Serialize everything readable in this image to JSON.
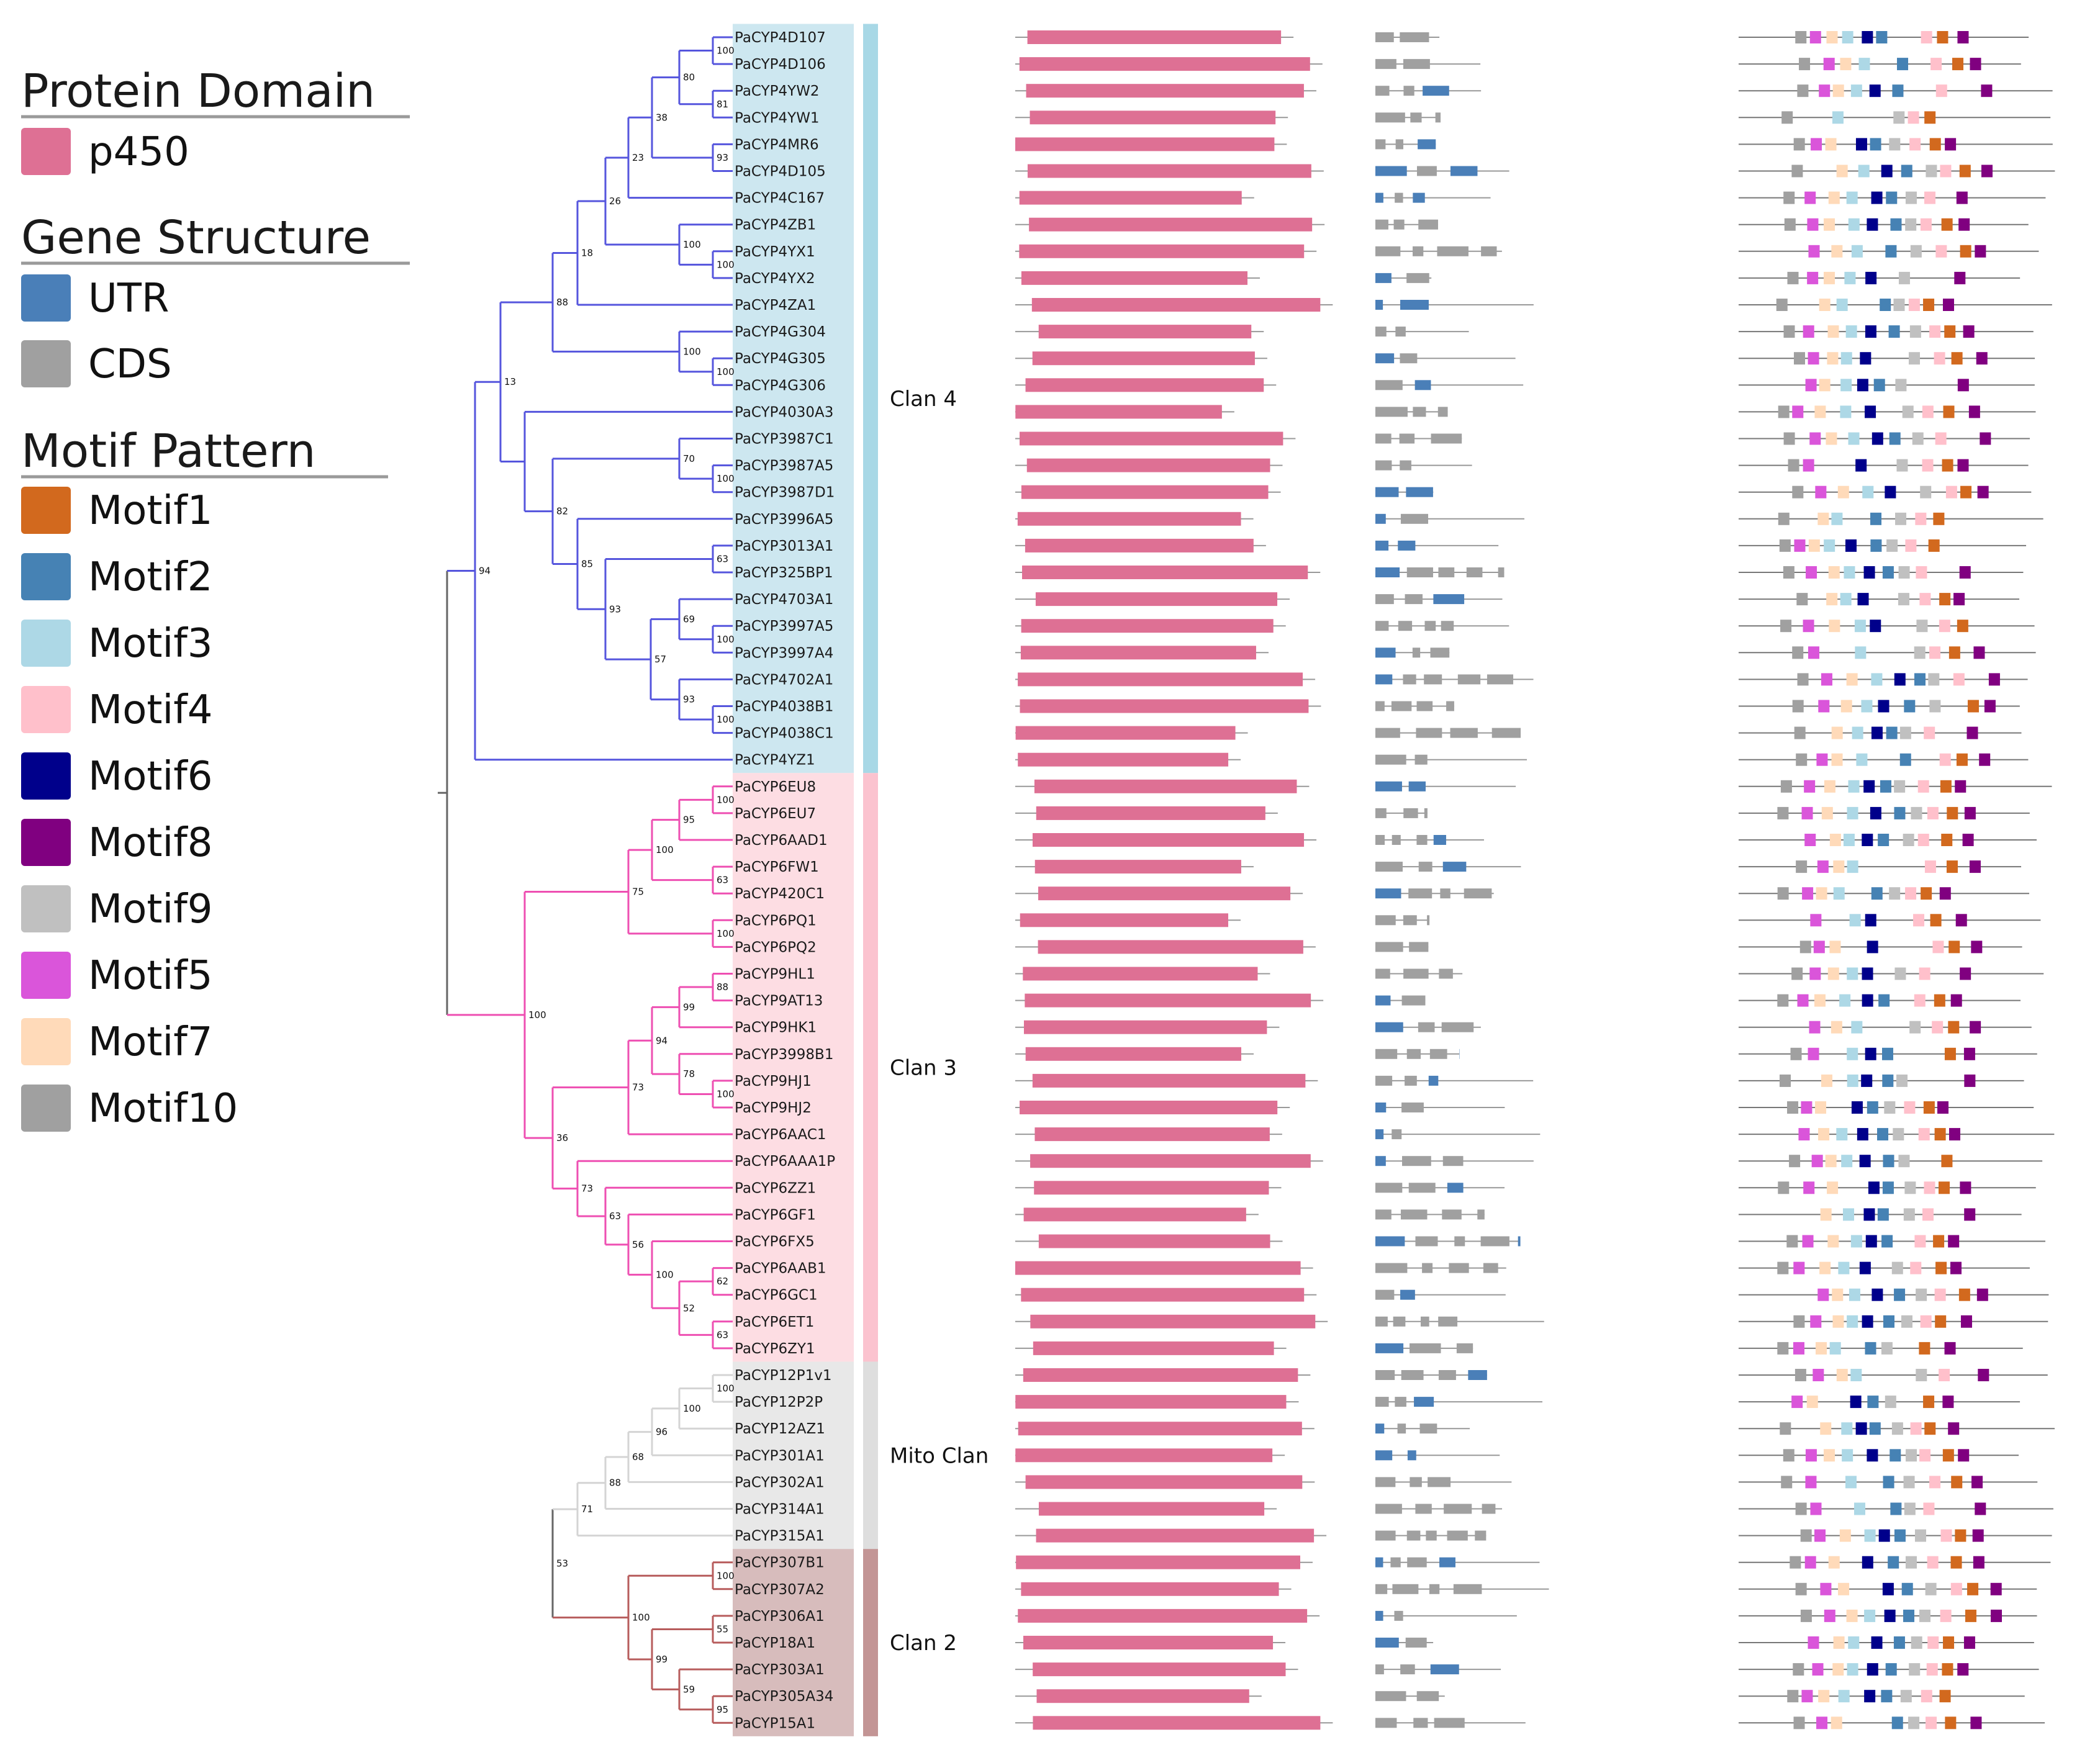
{
  "legend": {
    "protein_domain": {
      "title": "Protein Domain",
      "items": [
        {
          "label": "p450",
          "color": "#de7094"
        }
      ]
    },
    "gene_structure": {
      "title": "Gene Structure",
      "items": [
        {
          "label": "UTR",
          "color": "#4a7fb8"
        },
        {
          "label": "CDS",
          "color": "#a0a0a0"
        }
      ]
    },
    "motif_pattern": {
      "title": "Motif Pattern",
      "items": [
        {
          "label": "Motif1",
          "color": "#d2691e"
        },
        {
          "label": "Motif2",
          "color": "#4682b4"
        },
        {
          "label": "Motif3",
          "color": "#add8e6"
        },
        {
          "label": "Motif4",
          "color": "#ffc0cb"
        },
        {
          "label": "Motif6",
          "color": "#00008b"
        },
        {
          "label": "Motif8",
          "color": "#800080"
        },
        {
          "label": "Motif9",
          "color": "#c0c0c0"
        },
        {
          "label": "Motif5",
          "color": "#da55da"
        },
        {
          "label": "Motif7",
          "color": "#ffdab9"
        },
        {
          "label": "Motif10",
          "color": "#a0a0a0"
        }
      ]
    }
  },
  "clans": [
    {
      "label": "Clan 4",
      "bg": "#cde7f0",
      "bar": "#a8d8e6",
      "branch": "#5555dd"
    },
    {
      "label": "Clan 3",
      "bg": "#fddde3",
      "bar": "#fbc3cf",
      "branch": "#ee4fb2"
    },
    {
      "label": "Mito Clan",
      "bg": "#e8e8e8",
      "bar": "#dedede",
      "branch": "#d4d4d4"
    },
    {
      "label": "Clan 2",
      "bg": "#d7bcbc",
      "bar": "#c39595",
      "branch": "#b75c5c"
    }
  ],
  "root_branch_color": "#666666",
  "genes": [
    "PaCYP4D107",
    "PaCYP4D106",
    "PaCYP4YW2",
    "PaCYP4YW1",
    "PaCYP4MR6",
    "PaCYP4D105",
    "PaCYP4C167",
    "PaCYP4ZB1",
    "PaCYP4YX1",
    "PaCYP4YX2",
    "PaCYP4ZA1",
    "PaCYP4G304",
    "PaCYP4G305",
    "PaCYP4G306",
    "PaCYP4030A3",
    "PaCYP3987C1",
    "PaCYP3987A5",
    "PaCYP3987D1",
    "PaCYP3996A5",
    "PaCYP3013A1",
    "PaCYP325BP1",
    "PaCYP4703A1",
    "PaCYP3997A5",
    "PaCYP3997A4",
    "PaCYP4702A1",
    "PaCYP4038B1",
    "PaCYP4038C1",
    "PaCYP4YZ1",
    "PaCYP6EU8",
    "PaCYP6EU7",
    "PaCYP6AAD1",
    "PaCYP6FW1",
    "PaCYP420C1",
    "PaCYP6PQ1",
    "PaCYP6PQ2",
    "PaCYP9HL1",
    "PaCYP9AT13",
    "PaCYP9HK1",
    "PaCYP3998B1",
    "PaCYP9HJ1",
    "PaCYP9HJ2",
    "PaCYP6AAC1",
    "PaCYP6AAA1P",
    "PaCYP6ZZ1",
    "PaCYP6GF1",
    "PaCYP6FX5",
    "PaCYP6AAB1",
    "PaCYP6GC1",
    "PaCYP6ET1",
    "PaCYP6ZY1",
    "PaCYP12P1v1",
    "PaCYP12P2P",
    "PaCYP12AZ1",
    "PaCYP301A1",
    "PaCYP302A1",
    "PaCYP314A1",
    "PaCYP315A1",
    "PaCYP307B1",
    "PaCYP307A2",
    "PaCYP306A1",
    "PaCYP18A1",
    "PaCYP303A1",
    "PaCYP305A34",
    "PaCYP15A1"
  ],
  "clan_ranges": [
    [
      0,
      27
    ],
    [
      28,
      49
    ],
    [
      50,
      56
    ],
    [
      57,
      63
    ]
  ],
  "tree": {
    "n": [
      [
        "",
        0,
        1,
        4
      ],
      [
        "100",
        1148,
        "PaCYP4D107",
        "PaCYP4D106"
      ],
      [
        "81",
        1148,
        "PaCYP4YW2",
        "PaCYP4YW1"
      ],
      [
        "80",
        1094,
        1,
        2
      ],
      [
        "93",
        1148,
        "PaCYP4MR6",
        "PaCYP4D105"
      ],
      [
        "38",
        1050,
        3,
        4
      ],
      [
        "23",
        1012,
        5,
        "PaCYP4C167"
      ],
      [
        "100",
        1148,
        "PaCYP4YX1",
        "PaCYP4YX2"
      ],
      [
        "100",
        1094,
        "PaCYP4ZB1",
        7
      ],
      [
        "26",
        975,
        6,
        8
      ],
      [
        "100",
        1148,
        "PaCYP4G305",
        "PaCYP4G306"
      ],
      [
        "100",
        1094,
        "PaCYP4G304",
        10
      ],
      [
        "18",
        930,
        9,
        "PaCYP4ZA1"
      ],
      [
        "88",
        890,
        12,
        11
      ],
      [
        "100",
        1148,
        "PaCYP3987A5",
        "PaCYP3987D1"
      ],
      [
        "70",
        1094,
        "PaCYP3987C1",
        14
      ],
      [
        "63",
        1148,
        "PaCYP3013A1",
        "PaCYP325BP1"
      ],
      [
        "100",
        1148,
        "PaCYP3997A5",
        "PaCYP3997A4"
      ],
      [
        "69",
        1094,
        "PaCYP4703A1",
        17
      ],
      [
        "100",
        1148,
        "PaCYP4038B1",
        "PaCYP4038C1"
      ],
      [
        "93",
        1094,
        "PaCYP4702A1",
        19
      ],
      [
        "57",
        1048,
        18,
        20
      ],
      [
        "93",
        975,
        16,
        21
      ],
      [
        "85",
        930,
        "PaCYP3996A5",
        22
      ],
      [
        "82",
        890,
        15,
        23
      ],
      [
        "",
        845,
        "PaCYP4030A3",
        24
      ],
      [
        "13",
        806,
        13,
        25
      ],
      [
        "94",
        765,
        26,
        "PaCYP4YZ1"
      ],
      [
        "100",
        1148,
        "PaCYP6EU8",
        "PaCYP6EU7"
      ],
      [
        "95",
        1094,
        28,
        "PaCYP6AAD1"
      ],
      [
        "63",
        1148,
        "PaCYP6FW1",
        "PaCYP420C1"
      ],
      [
        "100",
        1050,
        29,
        30
      ],
      [
        "100",
        1148,
        "PaCYP6PQ1",
        "PaCYP6PQ2"
      ],
      [
        "75",
        1012,
        31,
        32
      ],
      [
        "88",
        1148,
        "PaCYP9HL1",
        "PaCYP9AT13"
      ],
      [
        "99",
        1094,
        34,
        "PaCYP9HK1"
      ],
      [
        "100",
        1148,
        "PaCYP9HJ1",
        "PaCYP9HJ2"
      ],
      [
        "78",
        1094,
        "PaCYP3998B1",
        36
      ],
      [
        "94",
        1050,
        35,
        37
      ],
      [
        "73",
        1012,
        38,
        "PaCYP6AAC1"
      ],
      [
        "62",
        1148,
        "PaCYP6AAB1",
        "PaCYP6GC1"
      ],
      [
        "63",
        1148,
        "PaCYP6ET1",
        "PaCYP6ZY1"
      ],
      [
        "52",
        1094,
        40,
        41
      ],
      [
        "100",
        1050,
        "PaCYP6FX5",
        42
      ],
      [
        "56",
        1012,
        "PaCYP6GF1",
        43
      ],
      [
        "63",
        975,
        "PaCYP6ZZ1",
        44
      ],
      [
        "73",
        930,
        "PaCYP6AAA1P",
        45
      ],
      [
        "36",
        890,
        39,
        46
      ],
      [
        "100",
        845,
        33,
        47
      ],
      [
        "100",
        1148,
        "PaCYP12P1v1",
        "PaCYP12P2P"
      ],
      [
        "100",
        1094,
        49,
        "PaCYP12AZ1"
      ],
      [
        "96",
        1050,
        50,
        "PaCYP301A1"
      ],
      [
        "68",
        1012,
        51,
        "PaCYP302A1"
      ],
      [
        "88",
        975,
        52,
        "PaCYP314A1"
      ],
      [
        "71",
        930,
        53,
        "PaCYP315A1"
      ],
      [
        "100",
        1148,
        "PaCYP307B1",
        "PaCYP307A2"
      ],
      [
        "55",
        1148,
        "PaCYP306A1",
        "PaCYP18A1"
      ],
      [
        "95",
        1148,
        "PaCYP305A34",
        "PaCYP15A1"
      ],
      [
        "59",
        1094,
        "PaCYP303A1",
        57
      ],
      [
        "99",
        1050,
        56,
        58
      ],
      [
        "100",
        1012,
        55,
        59
      ],
      [
        "53",
        890,
        54,
        60
      ],
      [
        "",
        720,
        27,
        48
      ],
      [
        "",
        720,
        61,
        61
      ]
    ]
  }
}
